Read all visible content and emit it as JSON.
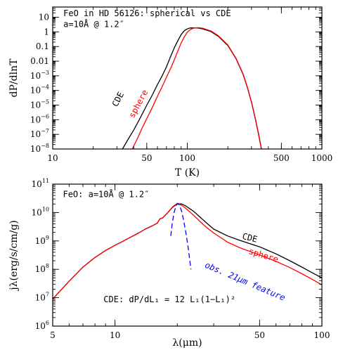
{
  "chart_data": [
    {
      "type": "line",
      "ylabel": "dP/dlnT",
      "xlabel": "T   (K)",
      "x_log": true,
      "y_log": true,
      "xlim": [
        10,
        1000
      ],
      "ylim": [
        1e-08,
        50
      ],
      "x_ticks": [
        {
          "v": 10,
          "label": "10"
        },
        {
          "v": 50,
          "label": "50"
        },
        {
          "v": 100,
          "label": "100"
        },
        {
          "v": 500,
          "label": "500"
        },
        {
          "v": 1000,
          "label": "1000"
        }
      ],
      "y_ticks": [
        {
          "v": 10,
          "base": "10",
          "exp": ""
        },
        {
          "v": 1,
          "base": "1",
          "exp": ""
        },
        {
          "v": 0.1,
          "base": "0.1",
          "exp": ""
        },
        {
          "v": 0.01,
          "base": "0.01",
          "exp": ""
        },
        {
          "v": 0.001,
          "base": "10",
          "exp": "−3"
        },
        {
          "v": 0.0001,
          "base": "10",
          "exp": "−4"
        },
        {
          "v": 1e-05,
          "base": "10",
          "exp": "−5"
        },
        {
          "v": 1e-06,
          "base": "10",
          "exp": "−6"
        },
        {
          "v": 1e-07,
          "base": "10",
          "exp": "−7"
        },
        {
          "v": 1e-08,
          "base": "10",
          "exp": "−8"
        }
      ],
      "annotations": [
        {
          "text": "FeO in HD 56126: spherical vs CDE",
          "x": 12,
          "y": 12
        },
        {
          "text": "a=10Å @ 1.2″",
          "x": 12,
          "y": 2.2
        }
      ],
      "series": [
        {
          "name": "CDE",
          "color": "#000000",
          "label_pos": {
            "x": 30,
            "y": 7e-06
          },
          "points": [
            [
              33,
              1e-08
            ],
            [
              36,
              4e-08
            ],
            [
              40,
              2e-07
            ],
            [
              45,
              1.5e-06
            ],
            [
              50,
              1e-05
            ],
            [
              55,
              5e-05
            ],
            [
              60,
              0.00025
            ],
            [
              65,
              0.001
            ],
            [
              70,
              0.004
            ],
            [
              75,
              0.02
            ],
            [
              80,
              0.08
            ],
            [
              85,
              0.25
            ],
            [
              90,
              0.65
            ],
            [
              95,
              1.2
            ],
            [
              100,
              1.6
            ],
            [
              105,
              1.85
            ],
            [
              110,
              1.9
            ],
            [
              120,
              1.85
            ],
            [
              130,
              1.6
            ],
            [
              150,
              1.05
            ],
            [
              170,
              0.5
            ],
            [
              200,
              0.12
            ],
            [
              230,
              0.015
            ],
            [
              260,
              0.0012
            ],
            [
              280,
              0.00015
            ],
            [
              300,
              1.5e-05
            ],
            [
              320,
              1.2e-06
            ],
            [
              340,
              8e-08
            ],
            [
              355,
              1e-08
            ]
          ]
        },
        {
          "name": "sphere",
          "color": "#ff0000",
          "label_pos": {
            "x": 40,
            "y": 1.2e-06
          },
          "points": [
            [
              39,
              1e-08
            ],
            [
              42,
              4e-08
            ],
            [
              46,
              2.5e-07
            ],
            [
              50,
              1.2e-06
            ],
            [
              55,
              7e-06
            ],
            [
              60,
              4e-05
            ],
            [
              65,
              0.00018
            ],
            [
              70,
              0.0008
            ],
            [
              75,
              0.003
            ],
            [
              80,
              0.012
            ],
            [
              85,
              0.05
            ],
            [
              90,
              0.17
            ],
            [
              95,
              0.45
            ],
            [
              100,
              0.95
            ],
            [
              105,
              1.4
            ],
            [
              110,
              1.75
            ],
            [
              115,
              1.9
            ],
            [
              120,
              1.95
            ],
            [
              130,
              1.8
            ],
            [
              150,
              1.15
            ],
            [
              170,
              0.55
            ],
            [
              200,
              0.13
            ],
            [
              230,
              0.016
            ],
            [
              260,
              0.0013
            ],
            [
              280,
              0.00016
            ],
            [
              300,
              1.6e-05
            ],
            [
              320,
              1.3e-06
            ],
            [
              340,
              9e-08
            ],
            [
              356,
              1e-08
            ]
          ]
        }
      ]
    },
    {
      "type": "line",
      "ylabel": "jλ(erg/s/cm/g)",
      "xlabel": "λ(μm)",
      "x_log": true,
      "y_log": true,
      "xlim": [
        5,
        100
      ],
      "ylim": [
        1000000.0,
        100000000000.0
      ],
      "x_ticks": [
        {
          "v": 5,
          "label": "5"
        },
        {
          "v": 10,
          "label": "10"
        },
        {
          "v": 50,
          "label": "50"
        },
        {
          "v": 100,
          "label": "100"
        }
      ],
      "y_ticks": [
        {
          "v": 100000000000.0,
          "base": "10",
          "exp": "11"
        },
        {
          "v": 10000000000.0,
          "base": "10",
          "exp": "10"
        },
        {
          "v": 1000000000.0,
          "base": "10",
          "exp": "9"
        },
        {
          "v": 100000000.0,
          "base": "10",
          "exp": "8"
        },
        {
          "v": 10000000.0,
          "base": "10",
          "exp": "7"
        },
        {
          "v": 1000000.0,
          "base": "10",
          "exp": "6"
        }
      ],
      "annotations": [
        {
          "text": "FeO: a=10Å @ 1.2″",
          "x": 5.6,
          "y": 35000000000.0
        },
        {
          "text": "CDE: dP/dL₁ = 12 L₁(1−L₁)²",
          "x": 8.8,
          "y": 7000000.0
        }
      ],
      "series": [
        {
          "name": "CDE",
          "color": "#000000",
          "label_pos": {
            "x": 41,
            "y": 1200000000.0
          },
          "points": [
            [
              5,
              9000000.0
            ],
            [
              6,
              38000000.0
            ],
            [
              7,
              120000000.0
            ],
            [
              8,
              260000000.0
            ],
            [
              9,
              460000000.0
            ],
            [
              10,
              700000000.0
            ],
            [
              11,
              1000000000.0
            ],
            [
              12,
              1400000000.0
            ],
            [
              13,
              1900000000.0
            ],
            [
              14,
              2600000000.0
            ],
            [
              15,
              3300000000.0
            ],
            [
              16,
              4200000000.0
            ],
            [
              16.5,
              6000000000.0
            ],
            [
              17,
              6500000000.0
            ],
            [
              18,
              10000000000.0
            ],
            [
              19,
              15500000000.0
            ],
            [
              20,
              20000000000.0
            ],
            [
              21,
              20000000000.0
            ],
            [
              22,
              17000000000.0
            ],
            [
              24,
              11000000000.0
            ],
            [
              26,
              6500000000.0
            ],
            [
              28,
              4000000000.0
            ],
            [
              30,
              2600000000.0
            ],
            [
              35,
              1500000000.0
            ],
            [
              40,
              1050000000.0
            ],
            [
              50,
              620000000.0
            ],
            [
              60,
              350000000.0
            ],
            [
              70,
              200000000.0
            ],
            [
              80,
              120000000.0
            ],
            [
              90,
              75000000.0
            ],
            [
              100,
              50000000.0
            ]
          ]
        },
        {
          "name": "sphere",
          "color": "#ff0000",
          "label_pos": {
            "x": 44,
            "y": 360000000.0
          },
          "points": [
            [
              5,
              9000000.0
            ],
            [
              6,
              38000000.0
            ],
            [
              7,
              120000000.0
            ],
            [
              8,
              260000000.0
            ],
            [
              9,
              460000000.0
            ],
            [
              10,
              700000000.0
            ],
            [
              11,
              1000000000.0
            ],
            [
              12,
              1400000000.0
            ],
            [
              13,
              1900000000.0
            ],
            [
              14,
              2600000000.0
            ],
            [
              15,
              3300000000.0
            ],
            [
              16,
              4200000000.0
            ],
            [
              16.5,
              6000000000.0
            ],
            [
              17,
              6500000000.0
            ],
            [
              18,
              10000000000.0
            ],
            [
              19,
              16000000000.0
            ],
            [
              20,
              21000000000.0
            ],
            [
              21,
              18000000000.0
            ],
            [
              22,
              14000000000.0
            ],
            [
              24,
              8000000000.0
            ],
            [
              26,
              4500000000.0
            ],
            [
              28,
              2800000000.0
            ],
            [
              30,
              1900000000.0
            ],
            [
              35,
              900000000.0
            ],
            [
              40,
              580000000.0
            ],
            [
              50,
              320000000.0
            ],
            [
              60,
              190000000.0
            ],
            [
              70,
              115000000.0
            ],
            [
              80,
              70000000.0
            ],
            [
              90,
              44000000.0
            ],
            [
              100,
              28000000.0
            ]
          ]
        },
        {
          "name": "obs. 21μm feature",
          "color": "#0000ff",
          "dashed": true,
          "label_pos": {
            "x": 27,
            "y": 120000000.0
          },
          "points": [
            [
              18.6,
              1500000000.0
            ],
            [
              18.9,
              4000000000.0
            ],
            [
              19.3,
              10000000000.0
            ],
            [
              19.7,
              17000000000.0
            ],
            [
              20.1,
              21000000000.0
            ],
            [
              20.5,
              18000000000.0
            ],
            [
              21,
              11000000000.0
            ],
            [
              21.5,
              5000000000.0
            ],
            [
              22,
              2000000000.0
            ],
            [
              22.5,
              700000000.0
            ],
            [
              23,
              200000000.0
            ],
            [
              23.3,
              100000000.0
            ]
          ]
        }
      ]
    }
  ]
}
